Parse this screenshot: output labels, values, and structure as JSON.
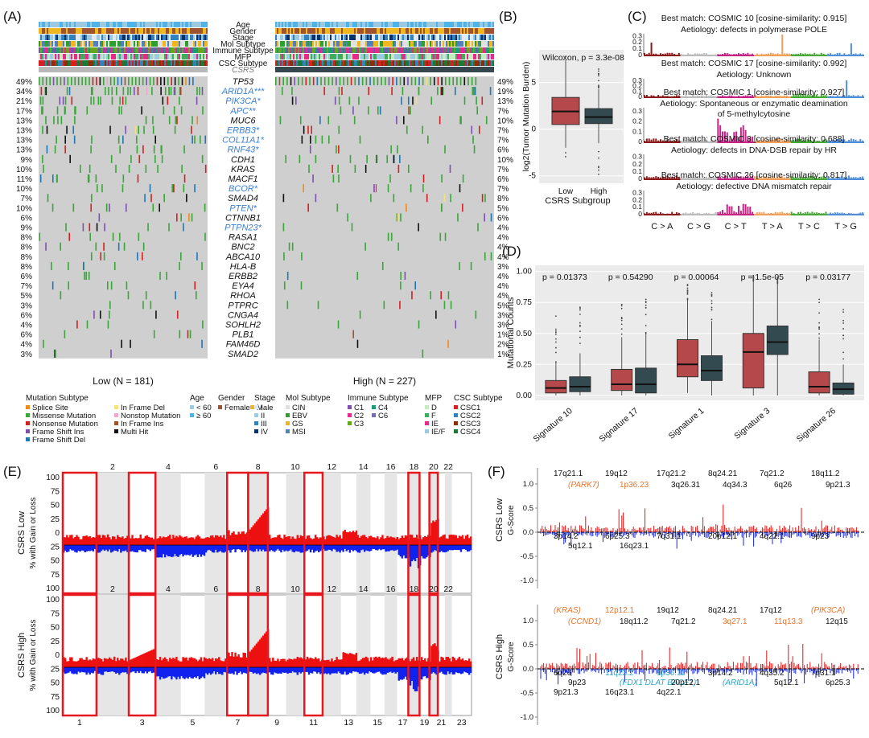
{
  "panel_labels": [
    "(A)",
    "(B)",
    "(C)",
    "(D)",
    "(E)",
    "(F)"
  ],
  "colors": {
    "bg_gray": "#cfcfcf",
    "red": "#b5484a",
    "dark": "#334a50",
    "gain": "#ee1111",
    "loss": "#1122ee",
    "blue_gene": "#3a7fd5",
    "orange_txt": "#e8742b",
    "cyan_txt": "#2aa6c9",
    "highlight": "#e8171d"
  },
  "panelA": {
    "tracks": [
      "Age",
      "Gender",
      "Stage",
      "Mol Subtype",
      "Immune Subtype",
      "MFP",
      "CSC Subtype",
      "CSRS"
    ],
    "genes": [
      {
        "name": "TP53",
        "low": "49%",
        "high": "49%",
        "sig": false
      },
      {
        "name": "ARID1A***",
        "low": "34%",
        "high": "19%",
        "sig": true
      },
      {
        "name": "PIK3CA*",
        "low": "21%",
        "high": "13%",
        "sig": true
      },
      {
        "name": "APC**",
        "low": "17%",
        "high": "7%",
        "sig": true
      },
      {
        "name": "MUC6",
        "low": "13%",
        "high": "10%",
        "sig": false
      },
      {
        "name": "ERBB3*",
        "low": "13%",
        "high": "7%",
        "sig": true
      },
      {
        "name": "COL11A1*",
        "low": "13%",
        "high": "7%",
        "sig": true
      },
      {
        "name": "RNF43*",
        "low": "13%",
        "high": "6%",
        "sig": true
      },
      {
        "name": "CDH1",
        "low": "9%",
        "high": "10%",
        "sig": false
      },
      {
        "name": "KRAS",
        "low": "10%",
        "high": "7%",
        "sig": false
      },
      {
        "name": "MACF1",
        "low": "11%",
        "high": "6%",
        "sig": false
      },
      {
        "name": "BCOR*",
        "low": "10%",
        "high": "7%",
        "sig": true
      },
      {
        "name": "SMAD4",
        "low": "7%",
        "high": "8%",
        "sig": false
      },
      {
        "name": "PTEN*",
        "low": "10%",
        "high": "5%",
        "sig": true
      },
      {
        "name": "CTNNB1",
        "low": "6%",
        "high": "6%",
        "sig": false
      },
      {
        "name": "PTPN23*",
        "low": "9%",
        "high": "4%",
        "sig": true
      },
      {
        "name": "RASA1",
        "low": "8%",
        "high": "4%",
        "sig": false
      },
      {
        "name": "BNC2",
        "low": "8%",
        "high": "4%",
        "sig": false
      },
      {
        "name": "ABCA10",
        "low": "8%",
        "high": "4%",
        "sig": false
      },
      {
        "name": "HLA-B",
        "low": "8%",
        "high": "3%",
        "sig": false
      },
      {
        "name": "ERBB2",
        "low": "6%",
        "high": "4%",
        "sig": false
      },
      {
        "name": "EYA4",
        "low": "7%",
        "high": "4%",
        "sig": false
      },
      {
        "name": "RHOA",
        "low": "5%",
        "high": "4%",
        "sig": false
      },
      {
        "name": "PTPRC",
        "low": "3%",
        "high": "5%",
        "sig": false
      },
      {
        "name": "CNGA4",
        "low": "6%",
        "high": "3%",
        "sig": false
      },
      {
        "name": "SOHLH2",
        "low": "4%",
        "high": "3%",
        "sig": false
      },
      {
        "name": "PLB1",
        "low": "6%",
        "high": "1%",
        "sig": false
      },
      {
        "name": "FAM46D",
        "low": "4%",
        "high": "2%",
        "sig": false
      },
      {
        "name": "SMAD2",
        "low": "3%",
        "high": "1%",
        "sig": false
      }
    ],
    "group_low": "Low (N = 181)",
    "group_high": "High (N = 227)",
    "legend": {
      "mutation_title": "Mutation Subtype",
      "mutation_items": [
        {
          "label": "Splice Site",
          "color": "#f08a1c"
        },
        {
          "label": "Missense Mutation",
          "color": "#3aa63a"
        },
        {
          "label": "Nonsense Mutation",
          "color": "#d42020"
        },
        {
          "label": "Frame Shift Ins",
          "color": "#7b52ad"
        },
        {
          "label": "Frame Shift Del",
          "color": "#1f77b4"
        },
        {
          "label": "In Frame Del",
          "color": "#f4e27a"
        },
        {
          "label": "Nonstop Mutation",
          "color": "#f2a6c9"
        },
        {
          "label": "In Frame Ins",
          "color": "#a0522d"
        },
        {
          "label": "Multi Hit",
          "color": "#111111"
        }
      ],
      "age_title": "Age",
      "age_items": [
        {
          "label": "< 60",
          "color": "#9ecae1"
        },
        {
          "label": "≥ 60",
          "color": "#4fb3e8"
        }
      ],
      "gender_title": "Gender",
      "gender_items": [
        {
          "label": "Female",
          "color": "#a0522d"
        },
        {
          "label": "Male",
          "color": "#f0b61e"
        }
      ],
      "stage_title": "Stage",
      "stage_items": [
        {
          "label": "I",
          "color": "#deebf7"
        },
        {
          "label": "II",
          "color": "#9ecae1"
        },
        {
          "label": "III",
          "color": "#3182bd"
        },
        {
          "label": "IV",
          "color": "#08306b"
        }
      ],
      "mol_title": "Mol Subtype",
      "mol_items": [
        {
          "label": "CIN",
          "color": "#e0e0e0"
        },
        {
          "label": "EBV",
          "color": "#2ca02c"
        },
        {
          "label": "GS",
          "color": "#f0b61e"
        },
        {
          "label": "MSI",
          "color": "#4f81bd"
        }
      ],
      "immune_title": "Immune Subtype",
      "immune_items": [
        {
          "label": "C1",
          "color": "#7b52ad"
        },
        {
          "label": "C2",
          "color": "#e7298a"
        },
        {
          "label": "C3",
          "color": "#66a61e"
        },
        {
          "label": "C4",
          "color": "#1b9e77"
        },
        {
          "label": "C6",
          "color": "#7570b3"
        }
      ],
      "mfp_title": "MFP",
      "mfp_items": [
        {
          "label": "D",
          "color": "#c7e9c0"
        },
        {
          "label": "F",
          "color": "#41ab5d"
        },
        {
          "label": "IE",
          "color": "#e7298a"
        },
        {
          "label": "IE/F",
          "color": "#9ecae1"
        }
      ],
      "csc_title": "CSC Subtype",
      "csc_items": [
        {
          "label": "CSC1",
          "color": "#d42020"
        },
        {
          "label": "CSC2",
          "color": "#3182bd"
        },
        {
          "label": "CSC3",
          "color": "#8c2d04"
        },
        {
          "label": "CSC4",
          "color": "#1b7837"
        }
      ]
    }
  },
  "chart_data": [
    {
      "id": "B",
      "type": "boxplot",
      "annotation": "Wilcoxon, p = 3.3e-08",
      "ylabel": "log2(Tumor Mutation Burden)",
      "xlabel": "CSRS Subgroup",
      "categories": [
        "Low",
        "High"
      ],
      "yticks": [
        -5,
        0,
        5
      ],
      "ylim": [
        -5.8,
        8.5
      ],
      "boxes": [
        {
          "name": "Low",
          "min": -2.0,
          "q1": 0.5,
          "median": 1.9,
          "q3": 3.4,
          "max": 7.4
        },
        {
          "name": "High",
          "min": -1.5,
          "q1": 0.6,
          "median": 1.3,
          "q3": 2.2,
          "max": 4.3
        }
      ]
    },
    {
      "id": "C",
      "type": "bar",
      "title_entries": [
        {
          "match": "Best match: COSMIC 10 [cosine-similarity: 0.915]",
          "aetiology": "Aetiology: defects in polymerase POLE"
        },
        {
          "match": "Best match: COSMIC 17 [cosine-similarity: 0.992]",
          "aetiology": "Aetiology: Unknown"
        },
        {
          "match": "Best match: COSMIC 1 [cosine-similarity: 0.927]",
          "aetiology": "Aetiology: Spontaneous or enzymatic deamination",
          "aetiology2": "of 5-methylcytosine"
        },
        {
          "match": "Best match: COSMIC 3 [cosine-similarity: 0.688]",
          "aetiology": "Aetiology: defects in DNA-DSB repair by HR"
        },
        {
          "match": "Best match: COSMIC 26 [cosine-similarity: 0.817]",
          "aetiology": "Aetiology: defective DNA mismatch repair"
        }
      ],
      "yticks": [
        0,
        0.1,
        0.2,
        0.3
      ],
      "categories": [
        "C > A",
        "C > G",
        "C > T",
        "T > A",
        "T > C",
        "T > G"
      ],
      "category_colors": [
        "#8b1a1a",
        "#bbbbbb",
        "#c72384",
        "#f0a05a",
        "#4aa83a",
        "#4f8fd9"
      ]
    },
    {
      "id": "D",
      "type": "boxplot",
      "ylabel": "Mutational Counts",
      "yticks": [
        0,
        0.25,
        0.5,
        0.75,
        1
      ],
      "ytick_labels": [
        "0.00",
        "0.25",
        "0.50",
        "0.75",
        "1.00"
      ],
      "ylim": [
        -0.04,
        1.05
      ],
      "categories": [
        "Signature 10",
        "Signature 17",
        "Signature 1",
        "Signature 3",
        "Signature 26"
      ],
      "pvalues": [
        "p = 0.01373",
        "p = 0.54290",
        "p = 0.00064",
        "p = 1.5e-05",
        "p = 0.03177"
      ],
      "series": [
        {
          "name": "Low",
          "boxes": [
            {
              "min": 0,
              "q1": 0.02,
              "median": 0.06,
              "q3": 0.12,
              "max": 0.27
            },
            {
              "min": 0,
              "q1": 0.04,
              "median": 0.09,
              "q3": 0.21,
              "max": 0.47
            },
            {
              "min": 0.02,
              "q1": 0.15,
              "median": 0.25,
              "q3": 0.45,
              "max": 0.77
            },
            {
              "min": 0,
              "q1": 0.06,
              "median": 0.35,
              "q3": 0.5,
              "max": 0.92
            },
            {
              "min": 0,
              "q1": 0.02,
              "median": 0.07,
              "q3": 0.19,
              "max": 0.45
            }
          ]
        },
        {
          "name": "High",
          "boxes": [
            {
              "min": 0,
              "q1": 0.03,
              "median": 0.07,
              "q3": 0.15,
              "max": 0.34
            },
            {
              "min": 0,
              "q1": 0.02,
              "median": 0.09,
              "q3": 0.22,
              "max": 0.49
            },
            {
              "min": 0,
              "q1": 0.12,
              "median": 0.2,
              "q3": 0.32,
              "max": 0.6
            },
            {
              "min": 0,
              "q1": 0.33,
              "median": 0.43,
              "q3": 0.56,
              "max": 0.9
            },
            {
              "min": 0,
              "q1": 0.01,
              "median": 0.05,
              "q3": 0.1,
              "max": 0.25
            }
          ]
        }
      ]
    },
    {
      "id": "E",
      "type": "area",
      "ylabels": [
        "CSRS Low",
        "CSRS High"
      ],
      "ylabel_sub": "% with Gain or Loss",
      "yticks": [
        100,
        75,
        50,
        25,
        0,
        25,
        50,
        75,
        100
      ],
      "chrom_top_labels": [
        "2",
        "4",
        "6",
        "8",
        "10",
        "12",
        "14",
        "16",
        "18",
        "20",
        "22"
      ],
      "chrom_bottom_labels": [
        "1",
        "3",
        "5",
        "7",
        "9",
        "11",
        "13",
        "15",
        "17",
        "19",
        "21",
        "23"
      ],
      "highlighted_chromosomes": [
        "1",
        "3",
        "7",
        "8",
        "11",
        "18",
        "20"
      ]
    },
    {
      "id": "F",
      "type": "line",
      "ylabels": [
        "CSRS Low",
        "CSRS High"
      ],
      "ylabel_sub": "G-Score",
      "yticks": [
        1,
        0.5,
        0,
        -0.5,
        -1
      ],
      "ytick_labels": [
        "1.0",
        "0.5",
        "0.0",
        "-0.5",
        "-1.0"
      ],
      "low_labels": [
        {
          "t": "17q21.1",
          "c": "k"
        },
        {
          "t": "19q12",
          "c": "k"
        },
        {
          "t": "17q21.2",
          "c": "k"
        },
        {
          "t": "8q24.21",
          "c": "k"
        },
        {
          "t": "7q21.2",
          "c": "k"
        },
        {
          "t": "18q11.2",
          "c": "k"
        },
        {
          "t": "(PARK7)",
          "c": "o"
        },
        {
          "t": "1p36.23",
          "c": "o"
        },
        {
          "t": "3q26.31",
          "c": "k"
        },
        {
          "t": "4q34.3",
          "c": "k"
        },
        {
          "t": "6q26",
          "c": "k"
        },
        {
          "t": "9p21.3",
          "c": "k"
        },
        {
          "t": "3p14.2",
          "c": "k"
        },
        {
          "t": "6p25.3",
          "c": "k"
        },
        {
          "t": "7q31.1",
          "c": "k"
        },
        {
          "t": "20p12.1",
          "c": "k"
        },
        {
          "t": "4q22.1",
          "c": "k"
        },
        {
          "t": "9p23",
          "c": "k"
        },
        {
          "t": "5q12.1",
          "c": "k"
        },
        {
          "t": "16q23.1",
          "c": "k"
        }
      ],
      "high_labels": [
        {
          "t": "(KRAS)",
          "c": "o"
        },
        {
          "t": "12p12.1",
          "c": "o"
        },
        {
          "t": "19q12",
          "c": "k"
        },
        {
          "t": "8q24.21",
          "c": "k"
        },
        {
          "t": "17q12",
          "c": "k"
        },
        {
          "t": "(PIK3CA)",
          "c": "o"
        },
        {
          "t": "(CCND1)",
          "c": "o"
        },
        {
          "t": "18q11.2",
          "c": "k"
        },
        {
          "t": "7q21.2",
          "c": "k"
        },
        {
          "t": "3q27.1",
          "c": "o"
        },
        {
          "t": "11q13.3",
          "c": "o"
        },
        {
          "t": "12q15",
          "c": "k"
        },
        {
          "t": "6q26",
          "c": "k"
        },
        {
          "t": "11q23.2",
          "c": "c"
        },
        {
          "t": "1p36.11",
          "c": "c"
        },
        {
          "t": "3p14.2",
          "c": "k"
        },
        {
          "t": "4q35.2",
          "c": "k"
        },
        {
          "t": "7q31.1",
          "c": "k"
        },
        {
          "t": "9p23",
          "c": "k"
        },
        {
          "t": "(FDX1 DLAT BACE1)",
          "c": "c"
        },
        {
          "t": "20p12.1",
          "c": "k"
        },
        {
          "t": "(ARID1A)",
          "c": "c"
        },
        {
          "t": "5q12.1",
          "c": "k"
        },
        {
          "t": "6p25.3",
          "c": "k"
        },
        {
          "t": "9p21.3",
          "c": "k"
        },
        {
          "t": "16q23.1",
          "c": "k"
        },
        {
          "t": "4q22.1",
          "c": "k"
        }
      ]
    }
  ]
}
